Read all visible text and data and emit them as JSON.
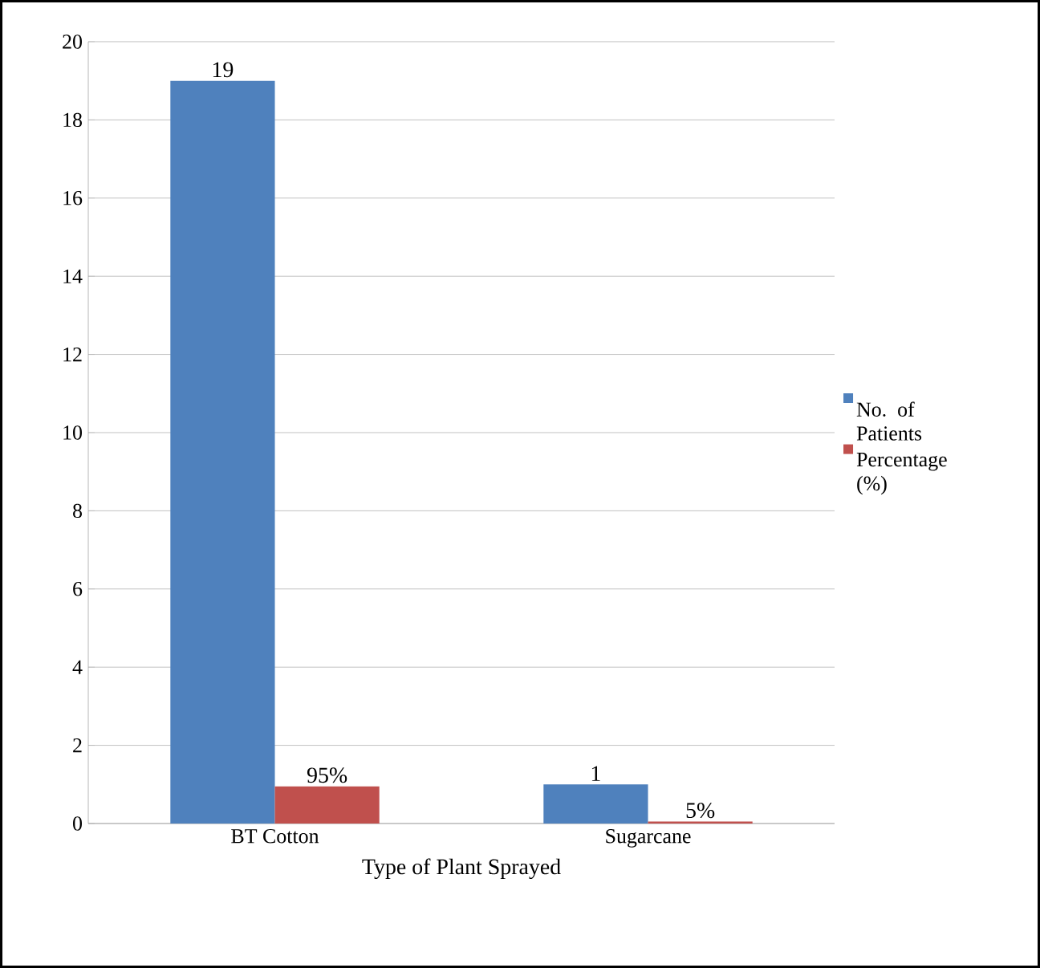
{
  "chart_data": {
    "type": "bar",
    "categories": [
      "BT Cotton",
      "Sugarcane"
    ],
    "xlabel": "Type of Plant Sprayed",
    "series": [
      {
        "name": "No. of Patients",
        "color": "#4f81bd",
        "values": [
          19,
          1
        ],
        "value_labels": [
          "19",
          "1"
        ]
      },
      {
        "name": "Percentage (%)",
        "color": "#c0504d",
        "values": [
          0.95,
          0.05
        ],
        "value_labels": [
          "95%",
          "5%"
        ]
      }
    ],
    "ylim": [
      0,
      20
    ],
    "yticks": [
      0,
      2,
      4,
      6,
      8,
      10,
      12,
      14,
      16,
      18,
      20
    ],
    "grid": "y",
    "legend": "right"
  }
}
